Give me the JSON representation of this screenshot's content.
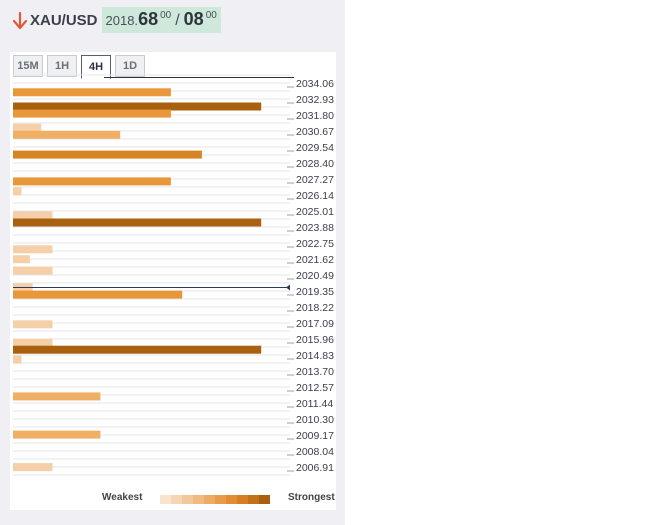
{
  "header": {
    "symbol": "XAU/USD",
    "direction_icon": "down-arrow-icon",
    "price_main": "2018.",
    "price_big": "68",
    "price_sup1": "00",
    "price_slash": "/",
    "price_big2": "08",
    "price_sup2": "00"
  },
  "tabs": [
    {
      "label": "15M",
      "active": false
    },
    {
      "label": "1H",
      "active": false
    },
    {
      "label": "4H",
      "active": true
    },
    {
      "label": "1D",
      "active": false
    }
  ],
  "colors": {
    "level1": "#f5cfa8",
    "level2": "#efb065",
    "level3": "#e8983a",
    "level4": "#d78425",
    "level5": "#a9600f",
    "current_price_line": "#2d3a5c"
  },
  "chart_data": {
    "type": "bar",
    "orientation": "horizontal",
    "price_labels": [
      "2034.06",
      "2032.93",
      "2031.80",
      "2030.67",
      "2029.54",
      "2028.40",
      "2027.27",
      "2026.14",
      "2025.01",
      "2023.88",
      "2022.75",
      "2021.62",
      "2020.49",
      "2019.35",
      "2018.22",
      "2017.09",
      "2015.96",
      "2014.83",
      "2013.70",
      "2012.57",
      "2011.44",
      "2010.30",
      "2009.17",
      "2008.04",
      "2006.91"
    ],
    "bars": [
      {
        "price": 2033.4,
        "strength": 0.56,
        "level": 3
      },
      {
        "price": 2032.4,
        "strength": 0.88,
        "level": 5
      },
      {
        "price": 2031.9,
        "strength": 0.56,
        "level": 3
      },
      {
        "price": 2030.9,
        "strength": 0.1,
        "level": 1
      },
      {
        "price": 2030.4,
        "strength": 0.38,
        "level": 2
      },
      {
        "price": 2029.0,
        "strength": 0.67,
        "level": 4
      },
      {
        "price": 2027.1,
        "strength": 0.56,
        "level": 3
      },
      {
        "price": 2026.4,
        "strength": 0.03,
        "level": 1
      },
      {
        "price": 2024.7,
        "strength": 0.14,
        "level": 1
      },
      {
        "price": 2024.2,
        "strength": 0.88,
        "level": 5
      },
      {
        "price": 2022.3,
        "strength": 0.14,
        "level": 1
      },
      {
        "price": 2021.6,
        "strength": 0.06,
        "level": 1
      },
      {
        "price": 2020.8,
        "strength": 0.14,
        "level": 1
      },
      {
        "price": 2019.6,
        "strength": 0.07,
        "level": 1
      },
      {
        "price": 2019.1,
        "strength": 0.6,
        "level": 3
      },
      {
        "price": 2017.0,
        "strength": 0.14,
        "level": 1
      },
      {
        "price": 2015.7,
        "strength": 0.14,
        "level": 1
      },
      {
        "price": 2015.2,
        "strength": 0.88,
        "level": 5
      },
      {
        "price": 2014.5,
        "strength": 0.03,
        "level": 1
      },
      {
        "price": 2011.9,
        "strength": 0.31,
        "level": 2
      },
      {
        "price": 2009.2,
        "strength": 0.31,
        "level": 2
      },
      {
        "price": 2006.9,
        "strength": 0.14,
        "level": 1
      }
    ],
    "current_price": 2019.6,
    "price_max": 2034.06,
    "price_min": 2006.91
  },
  "legend": {
    "weakest": "Weakest",
    "strongest": "Strongest",
    "scale_colors": [
      "#f8e3cc",
      "#f5d6b3",
      "#f2c89a",
      "#efb97f",
      "#ecaa64",
      "#e89b4a",
      "#e38c32",
      "#d67f22",
      "#c2711a",
      "#a95f10"
    ]
  }
}
